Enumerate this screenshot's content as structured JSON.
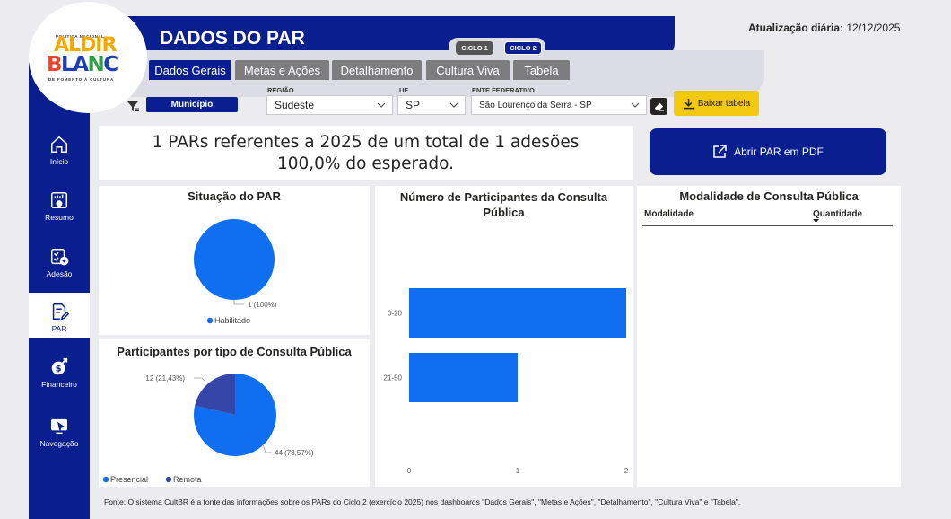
{
  "header": {
    "title": "DADOS DO PAR",
    "update_label": "Atualização diária:",
    "update_date": "12/12/2025",
    "ciclos": [
      "CICLO 1",
      "CICLO 2"
    ]
  },
  "logo": {
    "top_text": "POLÍTICA NACIONAL",
    "line1": "ALDIR",
    "line2": "BLANC",
    "bottom_text": "DE FOMENTO À CULTURA"
  },
  "tabs": [
    {
      "label": "Dados Gerais",
      "active": true
    },
    {
      "label": "Metas e Ações",
      "active": false
    },
    {
      "label": "Detalhamento",
      "active": false
    },
    {
      "label": "Cultura Viva",
      "active": false
    },
    {
      "label": "Tabela",
      "active": false
    }
  ],
  "filters": {
    "municipio_button": "Município",
    "regiao_label": "REGIÃO",
    "regiao_value": "Sudeste",
    "uf_label": "UF",
    "uf_value": "SP",
    "ente_label": "ENTE FEDERATIVO",
    "ente_value": "São Lourenço da Serra - SP",
    "download_button": "Baixar tabela"
  },
  "sidebar": [
    {
      "label": "Início",
      "icon": "home-icon"
    },
    {
      "label": "Resumo",
      "icon": "dashboard-icon"
    },
    {
      "label": "Adesão",
      "icon": "checklist-add-icon"
    },
    {
      "label": "PAR",
      "icon": "document-edit-icon",
      "active": true
    },
    {
      "label": "Financeiro",
      "icon": "money-growth-icon"
    },
    {
      "label": "Navegação",
      "icon": "screen-cursor-icon"
    }
  ],
  "summary": {
    "line1": "1 PARs referentes a 2025 de um total de 1 adesões",
    "line2": "100,0% do esperado."
  },
  "open_pdf_button": "Abrir PAR em PDF",
  "colors": {
    "primary": "#0a1f8f",
    "blue": "#0f6ff0",
    "dark_slice": "#3545a8",
    "yellow": "#f2c811"
  },
  "chart_data": [
    {
      "type": "pie",
      "title": "Situação do PAR",
      "labels": [
        "Habilitado"
      ],
      "values": [
        1
      ],
      "data_labels": [
        "1 (100%)"
      ],
      "legend": [
        "Habilitado"
      ]
    },
    {
      "type": "pie",
      "title": "Participantes por tipo de Consulta Pública",
      "labels": [
        "Presencial",
        "Remota"
      ],
      "values": [
        44,
        12
      ],
      "data_labels": [
        "44 (78,57%)",
        "12 (21,43%)"
      ],
      "legend": [
        "Presencial",
        "Remota"
      ]
    },
    {
      "type": "bar",
      "orientation": "horizontal",
      "title": "Número de Participantes da Consulta Pública",
      "categories": [
        "0-20",
        "21-50"
      ],
      "values": [
        2,
        1
      ],
      "xlim": [
        0,
        2
      ],
      "x_ticks": [
        "0",
        "1",
        "2"
      ]
    }
  ],
  "modalidade_table": {
    "title": "Modalidade de Consulta Pública",
    "columns": [
      "Modalidade",
      "Quantidade"
    ]
  },
  "footer": "Fonte: O sistema CultBR é a fonte das informações sobre os PARs do Ciclo 2 (exercício 2025) nos dashboards \"Dados Gerais\", \"Metas e Ações\", \"Detalhamento\", \"Cultura Viva\" e \"Tabela\"."
}
